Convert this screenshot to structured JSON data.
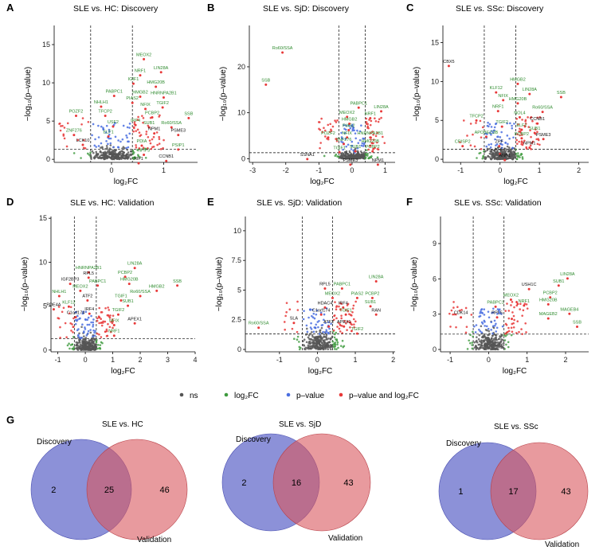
{
  "colors": {
    "ns": "#555555",
    "fc": "#3d9a3d",
    "p": "#4a6ee0",
    "both": "#e83838",
    "venn_disc": "#5b62c8",
    "venn_val": "#d8565e",
    "label_green": "#2e8b2e",
    "label_black": "#111111"
  },
  "legend": [
    {
      "key": "ns",
      "label": "ns"
    },
    {
      "key": "fc",
      "label": "log₂FC"
    },
    {
      "key": "p",
      "label": "p–value"
    },
    {
      "key": "both",
      "label": "p–value and log₂FC"
    }
  ],
  "chart_data": [
    {
      "id": "A",
      "letter": "A",
      "type": "scatter",
      "title": "SLE vs. HC: Discovery",
      "xlabel": "log₂FC",
      "ylabel": "−log₁₀(p–value)",
      "xlim": [
        -1.1,
        1.65
      ],
      "ylim": [
        -0.4,
        17.5
      ],
      "xticks": [
        0,
        1
      ],
      "yticks": [
        0,
        5,
        10,
        15
      ],
      "vlines": [
        -0.4,
        0.4
      ],
      "hline": 1.3,
      "labels": [
        {
          "t": "MEOX2",
          "x": 0.62,
          "y": 13.5,
          "c": "g"
        },
        {
          "t": "LIN28A",
          "x": 0.95,
          "y": 11.8,
          "c": "g"
        },
        {
          "t": "NRF1",
          "x": 0.55,
          "y": 11.4,
          "c": "g"
        },
        {
          "t": "IGIF1",
          "x": 0.42,
          "y": 10.3,
          "c": "g"
        },
        {
          "t": "HMG20B",
          "x": 0.85,
          "y": 9.9,
          "c": "g"
        },
        {
          "t": "PABPC1",
          "x": 0.05,
          "y": 8.7,
          "c": "g"
        },
        {
          "t": "HMGB2",
          "x": 0.55,
          "y": 8.6,
          "c": "g"
        },
        {
          "t": "HNRNPA2B1",
          "x": 1.0,
          "y": 8.5,
          "c": "g"
        },
        {
          "t": "PIAS2",
          "x": 0.4,
          "y": 7.8,
          "c": "g"
        },
        {
          "t": "NHLH1",
          "x": -0.2,
          "y": 7.3,
          "c": "g"
        },
        {
          "t": "NFIX",
          "x": 0.65,
          "y": 7.0,
          "c": "g"
        },
        {
          "t": "TGIF2",
          "x": 0.98,
          "y": 7.2,
          "c": "g"
        },
        {
          "t": "POZF2",
          "x": -0.68,
          "y": 6.1,
          "c": "g"
        },
        {
          "t": "TFCP2",
          "x": -0.12,
          "y": 6.1,
          "c": "g"
        },
        {
          "t": "PCBP2",
          "x": 0.78,
          "y": 5.9,
          "c": "g"
        },
        {
          "t": "SSB",
          "x": 1.48,
          "y": 5.8,
          "c": "g"
        },
        {
          "t": "USF2",
          "x": 0.03,
          "y": 4.7,
          "c": "g"
        },
        {
          "t": "IRF4",
          "x": 0.46,
          "y": 4.9,
          "c": "g"
        },
        {
          "t": "SUB1",
          "x": 0.72,
          "y": 4.6,
          "c": "g"
        },
        {
          "t": "Ro60/SSA",
          "x": 1.15,
          "y": 4.6,
          "c": "g"
        },
        {
          "t": "ZNF276",
          "x": -0.72,
          "y": 3.6,
          "c": "g"
        },
        {
          "t": "ELF1",
          "x": -0.06,
          "y": 3.4,
          "c": "g"
        },
        {
          "t": "NPM1",
          "x": 0.82,
          "y": 3.8,
          "c": "b"
        },
        {
          "t": "PSME3",
          "x": 1.28,
          "y": 3.6,
          "c": "b"
        },
        {
          "t": "LCK10",
          "x": -0.55,
          "y": 2.3,
          "c": "b"
        },
        {
          "t": "PDIA",
          "x": 0.58,
          "y": 2.2,
          "c": "g"
        },
        {
          "t": "PSIP1",
          "x": 1.28,
          "y": 1.7,
          "c": "g"
        },
        {
          "t": "NFIF3",
          "x": 0.62,
          "y": 1.0,
          "c": "g"
        },
        {
          "t": "KIF1",
          "x": 0.52,
          "y": -0.1,
          "c": "b"
        },
        {
          "t": "CCNB1",
          "x": 1.05,
          "y": 0.2,
          "c": "b"
        }
      ]
    },
    {
      "id": "B",
      "letter": "B",
      "type": "scatter",
      "title": "SLE vs. SjD: Discovery",
      "xlabel": "log₂FC",
      "ylabel": "−log₁₀(p–value)",
      "xlim": [
        -3.1,
        1.3
      ],
      "ylim": [
        -0.8,
        29
      ],
      "xticks": [
        -3,
        -2,
        -1,
        0,
        1
      ],
      "yticks": [
        0,
        10,
        20
      ],
      "vlines": [
        -0.4,
        0.4
      ],
      "hline": 1.3,
      "labels": [
        {
          "t": "Ro60/SSA",
          "x": -2.1,
          "y": 23.8,
          "c": "g"
        },
        {
          "t": "SSB",
          "x": -2.6,
          "y": 16.8,
          "c": "g"
        },
        {
          "t": "PABPC1",
          "x": 0.2,
          "y": 11.8,
          "c": "g"
        },
        {
          "t": "LIN28A",
          "x": 0.88,
          "y": 11.0,
          "c": "g"
        },
        {
          "t": "MEOX2",
          "x": -0.15,
          "y": 9.8,
          "c": "g"
        },
        {
          "t": "NRF1",
          "x": 0.55,
          "y": 9.5,
          "c": "g"
        },
        {
          "t": "HMGB2",
          "x": -0.08,
          "y": 8.3,
          "c": "g"
        },
        {
          "t": "PIAS2",
          "x": -0.1,
          "y": 6.9,
          "c": "g"
        },
        {
          "t": "POZF2",
          "x": -0.72,
          "y": 5.3,
          "c": "g"
        },
        {
          "t": "NFIX",
          "x": -0.15,
          "y": 5.3,
          "c": "g"
        },
        {
          "t": "HNRNPA2B1",
          "x": 0.55,
          "y": 5.3,
          "c": "g"
        },
        {
          "t": "ZNF276",
          "x": -0.25,
          "y": 3.9,
          "c": "g"
        },
        {
          "t": "HMG20B",
          "x": 0.55,
          "y": 3.5,
          "c": "g"
        },
        {
          "t": "TGIF1",
          "x": -0.38,
          "y": 2.1,
          "c": "g"
        },
        {
          "t": "SUB1",
          "x": 0.1,
          "y": 2.3,
          "c": "g"
        },
        {
          "t": "PCBP2",
          "x": 0.62,
          "y": 2.3,
          "c": "g"
        },
        {
          "t": "SSNA1",
          "x": -1.35,
          "y": 0.6,
          "c": "b"
        },
        {
          "t": "PSME3",
          "x": -0.05,
          "y": -0.6,
          "c": "b"
        },
        {
          "t": "NPM1",
          "x": 0.78,
          "y": -0.6,
          "c": "b"
        }
      ]
    },
    {
      "id": "C",
      "letter": "C",
      "type": "scatter",
      "title": "SLE vs. SSc: Discovery",
      "xlabel": "log₂FC",
      "ylabel": "−log₁₀(p–value)",
      "xlim": [
        -1.45,
        2.25
      ],
      "ylim": [
        -0.4,
        17.2
      ],
      "xticks": [
        -1,
        0,
        1,
        2
      ],
      "yticks": [
        0,
        5,
        10,
        15
      ],
      "vlines": [
        -0.4,
        0.4
      ],
      "hline": 1.3,
      "labels": [
        {
          "t": "CBX5",
          "x": -1.3,
          "y": 12.4,
          "c": "b"
        },
        {
          "t": "HMGB2",
          "x": 0.45,
          "y": 10.1,
          "c": "g"
        },
        {
          "t": "KLF12",
          "x": -0.1,
          "y": 9.0,
          "c": "g"
        },
        {
          "t": "LIN28A",
          "x": 0.75,
          "y": 8.8,
          "c": "g"
        },
        {
          "t": "SSB",
          "x": 1.55,
          "y": 8.4,
          "c": "g"
        },
        {
          "t": "NFIX",
          "x": 0.08,
          "y": 8.0,
          "c": "g"
        },
        {
          "t": "HMG20B",
          "x": 0.45,
          "y": 7.6,
          "c": "g"
        },
        {
          "t": "NRF1",
          "x": -0.05,
          "y": 6.6,
          "c": "g"
        },
        {
          "t": "Ro60/SSA",
          "x": 1.08,
          "y": 6.5,
          "c": "g"
        },
        {
          "t": "NOL4",
          "x": 0.5,
          "y": 5.8,
          "c": "g"
        },
        {
          "t": "TFCP2",
          "x": -0.6,
          "y": 5.4,
          "c": "g"
        },
        {
          "t": "CCNB1",
          "x": 0.95,
          "y": 5.0,
          "c": "b"
        },
        {
          "t": "TGIF2",
          "x": 0.05,
          "y": 4.6,
          "c": "g"
        },
        {
          "t": "ELF1",
          "x": 0.55,
          "y": 4.2,
          "c": "g"
        },
        {
          "t": "SUB1",
          "x": 0.88,
          "y": 3.8,
          "c": "g"
        },
        {
          "t": "PCBP2",
          "x": 0.55,
          "y": 3.1,
          "c": "g"
        },
        {
          "t": "PSME3",
          "x": 1.1,
          "y": 3.0,
          "c": "b"
        },
        {
          "t": "APOBEC3B",
          "x": -0.35,
          "y": 3.3,
          "c": "g"
        },
        {
          "t": "CRISP2",
          "x": -0.95,
          "y": 2.1,
          "c": "g"
        },
        {
          "t": "NPM1",
          "x": 0.75,
          "y": 1.9,
          "c": "b"
        },
        {
          "t": "ZPF",
          "x": -0.02,
          "y": 2.1,
          "c": "b"
        },
        {
          "t": "NFF1",
          "x": 0.0,
          "y": 1.1,
          "c": "b"
        },
        {
          "t": "ANB1",
          "x": 0.12,
          "y": 0.3,
          "c": "b"
        }
      ]
    },
    {
      "id": "D",
      "letter": "D",
      "type": "scatter",
      "title": "SLE vs. HC: Validation",
      "xlabel": "log₂FC",
      "ylabel": "−log₁₀(p–value)",
      "xlim": [
        -1.25,
        4.0
      ],
      "ylim": [
        -0.2,
        15.2
      ],
      "xticks": [
        -1,
        0,
        1,
        2,
        3,
        4
      ],
      "yticks": [
        0,
        5,
        10,
        15
      ],
      "vlines": [
        -0.4,
        0.4
      ],
      "hline": 1.3,
      "labels": [
        {
          "t": "LIN28A",
          "x": 1.8,
          "y": 9.7,
          "c": "g"
        },
        {
          "t": "HNRNPA2B1",
          "x": 0.12,
          "y": 9.2,
          "c": "g"
        },
        {
          "t": "PCBP2",
          "x": 1.45,
          "y": 8.7,
          "c": "g"
        },
        {
          "t": "RPL5",
          "x": 0.12,
          "y": 8.6,
          "c": "b"
        },
        {
          "t": "SSB",
          "x": 3.35,
          "y": 7.7,
          "c": "g"
        },
        {
          "t": "HMG20B",
          "x": 1.6,
          "y": 7.9,
          "c": "g"
        },
        {
          "t": "IGF2BP3",
          "x": -0.55,
          "y": 7.9,
          "c": "b"
        },
        {
          "t": "PABPC1",
          "x": 0.45,
          "y": 7.7,
          "c": "g"
        },
        {
          "t": "HMGB2",
          "x": 2.6,
          "y": 7.1,
          "c": "g"
        },
        {
          "t": "MEOX2",
          "x": -0.18,
          "y": 7.1,
          "c": "g"
        },
        {
          "t": "Ro60/SSA",
          "x": 2.0,
          "y": 6.5,
          "c": "g"
        },
        {
          "t": "NHLH1",
          "x": -0.95,
          "y": 6.5,
          "c": "g"
        },
        {
          "t": "ATF2",
          "x": 0.08,
          "y": 6.0,
          "c": "b"
        },
        {
          "t": "TGIF1",
          "x": 1.3,
          "y": 6.0,
          "c": "g"
        },
        {
          "t": "KLF12",
          "x": -0.6,
          "y": 5.3,
          "c": "g"
        },
        {
          "t": "SUB1",
          "x": 1.55,
          "y": 5.4,
          "c": "g"
        },
        {
          "t": "PDE4A",
          "x": -1.15,
          "y": 5.0,
          "c": "b"
        },
        {
          "t": "IRF4",
          "x": 0.15,
          "y": 4.5,
          "c": "b"
        },
        {
          "t": "TGIF2",
          "x": 1.2,
          "y": 4.4,
          "c": "g"
        },
        {
          "t": "C1orf174",
          "x": -0.35,
          "y": 4.1,
          "c": "b"
        },
        {
          "t": "APEX1",
          "x": 1.8,
          "y": 3.4,
          "c": "b"
        },
        {
          "t": "NFIX",
          "x": 1.05,
          "y": 3.2,
          "c": "g"
        },
        {
          "t": "NRF1",
          "x": 1.05,
          "y": 2.0,
          "c": "g"
        }
      ]
    },
    {
      "id": "E",
      "letter": "E",
      "type": "scatter",
      "title": "SLE vs. SjD: Validation",
      "xlabel": "log₂FC",
      "ylabel": "−log₁₀(p–value)",
      "xlim": [
        -1.9,
        2.05
      ],
      "ylim": [
        -0.2,
        11.2
      ],
      "xticks": [
        -1,
        0,
        1,
        2
      ],
      "yticks": [
        0,
        2.5,
        5.0,
        7.5,
        10.0
      ],
      "vlines": [
        -0.4,
        0.4
      ],
      "hline": 1.3,
      "labels": [
        {
          "t": "LIN28A",
          "x": 1.55,
          "y": 6.0,
          "c": "g"
        },
        {
          "t": "RPL5",
          "x": 0.2,
          "y": 5.4,
          "c": "b"
        },
        {
          "t": "PABPC1",
          "x": 0.65,
          "y": 5.4,
          "c": "g"
        },
        {
          "t": "MEOX2",
          "x": 0.4,
          "y": 4.6,
          "c": "g"
        },
        {
          "t": "PIAS2",
          "x": 1.05,
          "y": 4.6,
          "c": "g"
        },
        {
          "t": "PCBP2",
          "x": 1.45,
          "y": 4.6,
          "c": "g"
        },
        {
          "t": "HDAC4",
          "x": 0.2,
          "y": 3.8,
          "c": "b"
        },
        {
          "t": "IRF4",
          "x": 0.68,
          "y": 3.8,
          "c": "b"
        },
        {
          "t": "SUB1",
          "x": 1.4,
          "y": 3.9,
          "c": "g"
        },
        {
          "t": "C1orf174",
          "x": 0.1,
          "y": 3.2,
          "c": "b"
        },
        {
          "t": "TGIF1",
          "x": 0.75,
          "y": 3.2,
          "c": "g"
        },
        {
          "t": "RAN",
          "x": 1.55,
          "y": 3.2,
          "c": "b"
        },
        {
          "t": "SLA",
          "x": -0.62,
          "y": 2.5,
          "c": "b"
        },
        {
          "t": "Ro60/SSA",
          "x": -1.55,
          "y": 2.1,
          "c": "g"
        },
        {
          "t": "ATF2",
          "x": 0.3,
          "y": 2.2,
          "c": "b"
        },
        {
          "t": "APEX1",
          "x": 0.7,
          "y": 2.2,
          "c": "b"
        },
        {
          "t": "TGIF2",
          "x": 1.05,
          "y": 1.6,
          "c": "g"
        }
      ]
    },
    {
      "id": "F",
      "letter": "F",
      "type": "scatter",
      "title": "SLE vs. SSc: Validation",
      "xlabel": "log₂FC",
      "ylabel": "−log₁₀(p–value)",
      "xlim": [
        -1.25,
        2.6
      ],
      "ylim": [
        -0.2,
        11.3
      ],
      "xticks": [
        -1,
        0,
        1,
        2
      ],
      "yticks": [
        0,
        3,
        6,
        9
      ],
      "vlines": [
        -0.4,
        0.4
      ],
      "hline": 1.3,
      "labels": [
        {
          "t": "LIN28A",
          "x": 2.05,
          "y": 6.3,
          "c": "g"
        },
        {
          "t": "SUB1",
          "x": 1.82,
          "y": 5.7,
          "c": "g"
        },
        {
          "t": "USH1C",
          "x": 1.05,
          "y": 5.4,
          "c": "b"
        },
        {
          "t": "PCBP2",
          "x": 1.6,
          "y": 4.7,
          "c": "g"
        },
        {
          "t": "MEOX2",
          "x": 0.58,
          "y": 4.5,
          "c": "g"
        },
        {
          "t": "PABPC1",
          "x": 0.18,
          "y": 3.9,
          "c": "g"
        },
        {
          "t": "NRF1",
          "x": 0.92,
          "y": 4.0,
          "c": "g"
        },
        {
          "t": "HMG20B",
          "x": 1.55,
          "y": 4.1,
          "c": "g"
        },
        {
          "t": "MAGEB4",
          "x": 2.1,
          "y": 3.3,
          "c": "g"
        },
        {
          "t": "CDK14",
          "x": -0.72,
          "y": 3.0,
          "c": "b"
        },
        {
          "t": "RPL5",
          "x": 0.22,
          "y": 3.0,
          "c": "b"
        },
        {
          "t": "MAGEB2",
          "x": 1.55,
          "y": 2.9,
          "c": "g"
        },
        {
          "t": "SSB",
          "x": 2.3,
          "y": 2.2,
          "c": "g"
        }
      ]
    }
  ],
  "venn": [
    {
      "id": "G",
      "letter": "G",
      "title": "SLE vs. HC",
      "disc_label": "Discovery",
      "val_label": "Validation",
      "only_disc": "2",
      "both": "25",
      "only_val": "46"
    },
    {
      "id": "H",
      "letter": "",
      "title": "SLE vs. SjD",
      "disc_label": "Discovery",
      "val_label": "Validation",
      "only_disc": "2",
      "both": "16",
      "only_val": "43"
    },
    {
      "id": "I",
      "letter": "",
      "title": "SLE vs. SSc",
      "disc_label": "Discovery",
      "val_label": "Validation",
      "only_disc": "1",
      "both": "17",
      "only_val": "43"
    }
  ]
}
